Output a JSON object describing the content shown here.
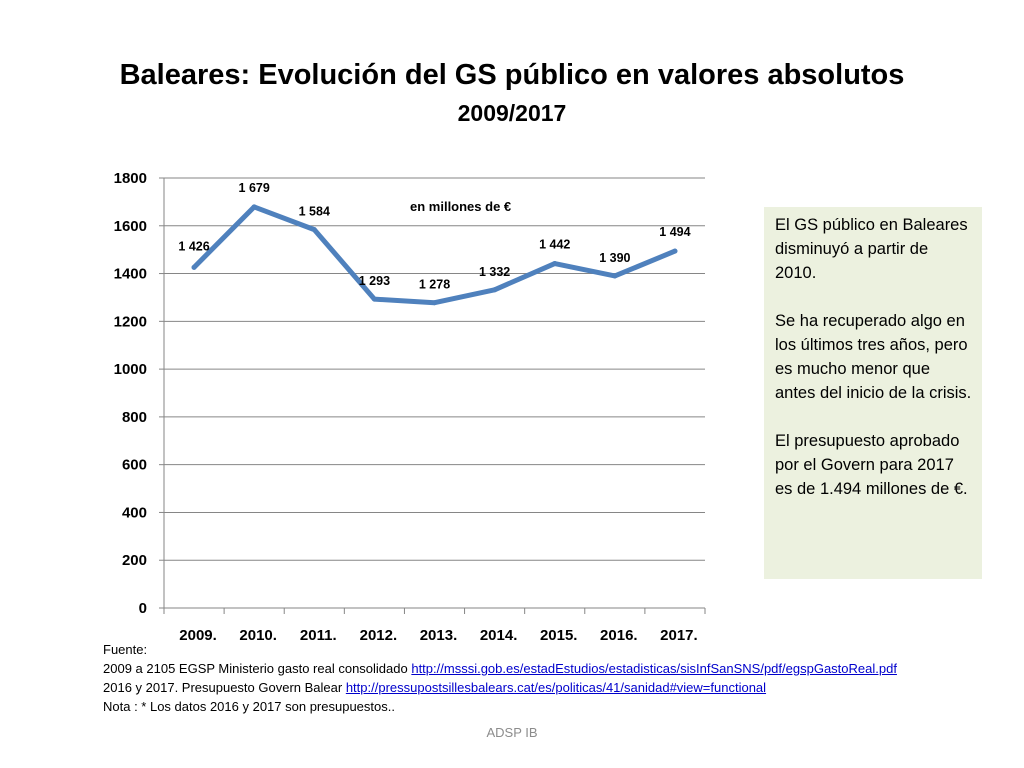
{
  "slide": {
    "footer": "ADSP IB"
  },
  "chart_data": {
    "type": "line",
    "title": "Baleares: Evolución del GS público en valores absolutos",
    "subtitle": "2009/2017",
    "unit_note": "en millones de €",
    "categories": [
      "2009.",
      "2010.",
      "2011.",
      "2012.",
      "2013.",
      "2014.",
      "2015.",
      "2016.",
      "2017."
    ],
    "series": [
      {
        "values": [
          1426,
          1679,
          1584,
          1293,
          1278,
          1332,
          1442,
          1390,
          1494
        ],
        "labels": [
          "1 426",
          "1 679",
          "1 584",
          "1 293",
          "1 278",
          "1 332",
          "1 442",
          "1 390",
          "1 494"
        ],
        "color": "#4f81bd"
      }
    ],
    "ylim": [
      0,
      1800
    ],
    "yticks": [
      "0",
      "200",
      "400",
      "600",
      "800",
      "1000",
      "1200",
      "1400",
      "1600",
      "1800"
    ],
    "grid": true,
    "gridline_color": "#868686"
  },
  "note_box": {
    "paragraphs": [
      "El GS público  en Baleares  disminuyó a partir de 2010.",
      "Se ha recuperado algo en los últimos tres años, pero es mucho menor que antes del inicio de la crisis.",
      "El presupuesto aprobado por el Govern para  2017 es de 1.494 millones de €."
    ],
    "background": "#ecf1df"
  },
  "source": {
    "heading": "Fuente:",
    "line1_text": "2009 a 2105 EGSP Ministerio  gasto real consolidado ",
    "line1_link": "http://msssi.gob.es/estadEstudios/estadisticas/sisInfSanSNS/pdf/egspGastoReal.pdf",
    "line2_text": "2016 y 2017. Presupuesto Govern Balear ",
    "line2_link": "http://pressupostsillesbalears.cat/es/politicas/41/sanidad#view=functional",
    "line3_text": "Nota : * Los datos 2016 y 2017 son presupuestos.."
  }
}
